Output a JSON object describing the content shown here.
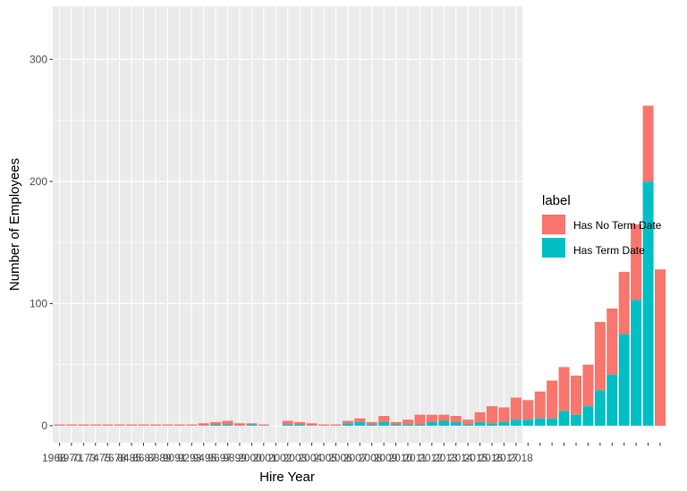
{
  "chart_data": {
    "type": "bar",
    "stacked": true,
    "xlabel": "Hire Year",
    "ylabel": "Number of Employees",
    "ylim": [
      0,
      330
    ],
    "yticks": [
      0,
      100,
      200,
      300
    ],
    "grid": true,
    "legend": {
      "title": "label",
      "position": "right"
    },
    "colors": {
      "panel": "#ebebeb",
      "grid": "#ffffff",
      "has_no_term_date": "#f8766d",
      "has_term_date": "#00bfc4"
    },
    "categories": [
      "1968",
      "1969",
      "1970",
      "1971",
      "1972",
      "1973",
      "1974",
      "1975",
      "1976",
      "1977",
      "1978",
      "1979",
      "1980",
      "1981",
      "1982",
      "1983",
      "1984",
      "1985",
      "1986",
      "1987",
      "1988",
      "1989",
      "1990",
      "1991",
      "1992",
      "1993",
      "1994",
      "1995",
      "1996",
      "1997",
      "1998",
      "1999",
      "2000",
      "2001",
      "2002",
      "2003",
      "2004",
      "2005",
      "2006",
      "2007",
      "2008",
      "2009",
      "2010",
      "2011",
      "2012",
      "2013",
      "2014",
      "2015",
      "2016",
      "2017",
      "2018"
    ],
    "tick_labels": [
      "1968",
      "6970",
      "7173",
      "7475",
      "7678",
      "8485",
      "8687",
      "8889",
      "9091",
      "9293",
      "9495",
      "9697",
      "9899",
      "2000",
      "2001",
      "2002",
      "2003",
      "2004",
      "2005",
      "2006",
      "2007",
      "2008",
      "2009",
      "2010",
      "2011",
      "2012",
      "2013",
      "2014",
      "2015",
      "2016",
      "2017",
      "2018"
    ],
    "series": [
      {
        "name": "Has No Term Date",
        "values": [
          1,
          1,
          1,
          1,
          1,
          1,
          1,
          1,
          1,
          1,
          1,
          1,
          2,
          2,
          3,
          2,
          1,
          1,
          0,
          3,
          2,
          2,
          1,
          1,
          2,
          3,
          2,
          5,
          2,
          4,
          8,
          6,
          5,
          5,
          4,
          8,
          14,
          12,
          18,
          16,
          22,
          31,
          36,
          32,
          34,
          56,
          54,
          51,
          62,
          62,
          128
        ]
      },
      {
        "name": "Has Term Date",
        "values": [
          0,
          0,
          0,
          0,
          0,
          0,
          0,
          0,
          0,
          0,
          0,
          0,
          0,
          1,
          1,
          0,
          1,
          0,
          0,
          1,
          1,
          0,
          0,
          0,
          2,
          3,
          1,
          3,
          1,
          1,
          1,
          3,
          4,
          3,
          1,
          3,
          2,
          3,
          5,
          5,
          6,
          6,
          12,
          9,
          16,
          29,
          42,
          75,
          103,
          200,
          0
        ]
      }
    ]
  },
  "legend": {
    "title": "label",
    "items": [
      {
        "label": "Has No Term Date",
        "color": "#f8766d"
      },
      {
        "label": "Has Term Date",
        "color": "#00bfc4"
      }
    ]
  }
}
